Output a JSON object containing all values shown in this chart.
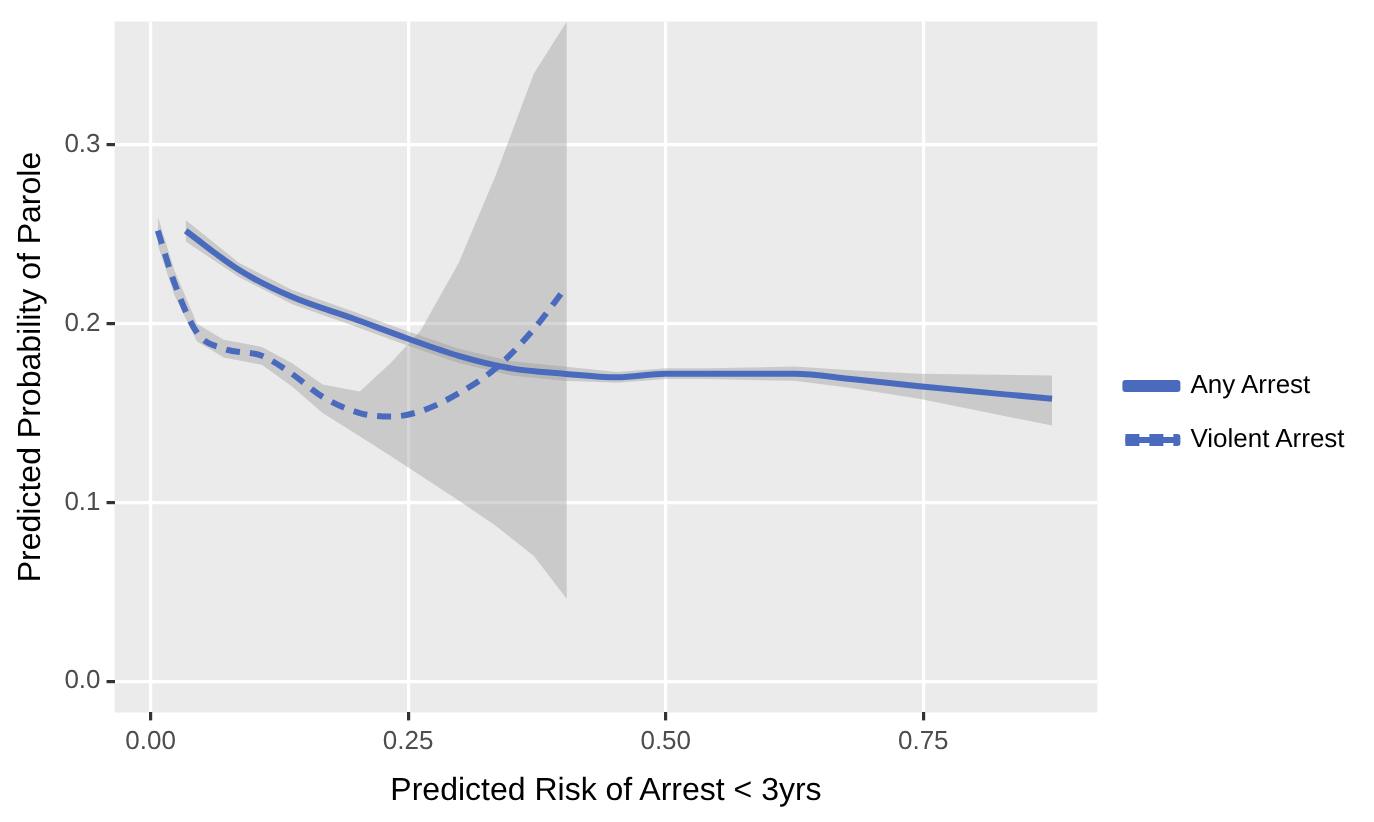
{
  "chart_data": {
    "type": "line",
    "xlabel": "Predicted Risk of Arrest < 3yrs",
    "ylabel": "Predicted Probability of Parole",
    "xlim": [
      -0.035,
      0.919
    ],
    "ylim": [
      -0.0175,
      0.369
    ],
    "xticks": [
      {
        "value": 0,
        "label": "0.00"
      },
      {
        "value": 0.25,
        "label": "0.25"
      },
      {
        "value": 0.5,
        "label": "0.50"
      },
      {
        "value": 0.75,
        "label": "0.75"
      }
    ],
    "yticks": [
      {
        "value": 0,
        "label": "0.0"
      },
      {
        "value": 0.1,
        "label": "0.1"
      },
      {
        "value": 0.2,
        "label": "0.2"
      },
      {
        "value": 0.3,
        "label": "0.3"
      }
    ],
    "grid": true,
    "legend": "right",
    "marker": "none",
    "series": [
      {
        "name": "Any Arrest",
        "color": "#4a6bbd",
        "line_style": "solid",
        "x": [
          0.034,
          0.086,
          0.137,
          0.196,
          0.248,
          0.299,
          0.35,
          0.401,
          0.453,
          0.5,
          0.541,
          0.625,
          0.68,
          0.746,
          0.875
        ],
        "values": [
          0.252,
          0.23,
          0.215,
          0.203,
          0.192,
          0.182,
          0.175,
          0.172,
          0.17,
          0.172,
          0.172,
          0.172,
          0.169,
          0.165,
          0.158
        ],
        "lower": [
          0.246,
          0.226,
          0.211,
          0.199,
          0.188,
          0.178,
          0.171,
          0.168,
          0.167,
          0.169,
          0.169,
          0.168,
          0.164,
          0.158,
          0.143
        ],
        "upper": [
          0.258,
          0.234,
          0.219,
          0.207,
          0.196,
          0.186,
          0.179,
          0.176,
          0.173,
          0.175,
          0.175,
          0.176,
          0.174,
          0.172,
          0.171
        ]
      },
      {
        "name": "Violent Arrest",
        "color": "#4a6bbd",
        "line_style": "dashed",
        "x": [
          0.007,
          0.023,
          0.045,
          0.071,
          0.108,
          0.137,
          0.167,
          0.203,
          0.233,
          0.262,
          0.299,
          0.335,
          0.372,
          0.404
        ],
        "values": [
          0.252,
          0.223,
          0.195,
          0.186,
          0.182,
          0.172,
          0.159,
          0.15,
          0.148,
          0.151,
          0.161,
          0.175,
          0.197,
          0.221
        ],
        "lower": [
          0.244,
          0.216,
          0.19,
          0.181,
          0.177,
          0.165,
          0.15,
          0.137,
          0.126,
          0.115,
          0.101,
          0.087,
          0.07,
          0.046
        ],
        "upper": [
          0.26,
          0.23,
          0.2,
          0.191,
          0.187,
          0.178,
          0.166,
          0.162,
          0.178,
          0.196,
          0.234,
          0.283,
          0.34,
          0.369
        ]
      }
    ]
  }
}
